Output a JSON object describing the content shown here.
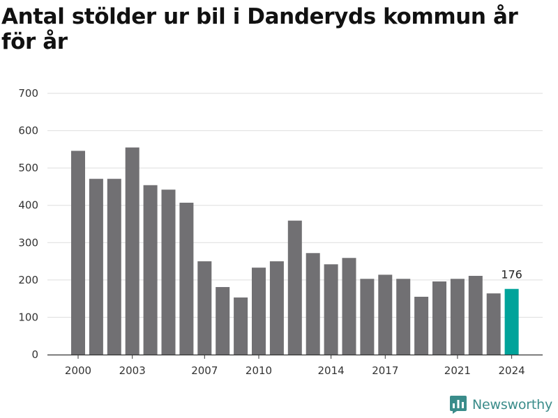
{
  "title": "Antal stölder ur bil i Danderyds kommun år för år",
  "brand": {
    "name": "Newsworthy",
    "icon": "newsworthy-logo-icon"
  },
  "colors": {
    "bar": "#717073",
    "highlight": "#00a39a",
    "grid": "#dddddd",
    "axis": "#333333"
  },
  "chart_data": {
    "type": "bar",
    "title": "Antal stölder ur bil i Danderyds kommun år för år",
    "xlabel": "",
    "ylabel": "",
    "categories": [
      2000,
      2001,
      2002,
      2003,
      2004,
      2005,
      2006,
      2007,
      2008,
      2009,
      2010,
      2011,
      2012,
      2013,
      2014,
      2015,
      2016,
      2017,
      2018,
      2019,
      2020,
      2021,
      2022,
      2023,
      2024
    ],
    "values": [
      546,
      471,
      471,
      555,
      454,
      442,
      407,
      250,
      181,
      153,
      233,
      250,
      359,
      272,
      242,
      259,
      203,
      214,
      203,
      155,
      196,
      203,
      211,
      164,
      176
    ],
    "ylim": [
      0,
      700
    ],
    "yticks": [
      0,
      100,
      200,
      300,
      400,
      500,
      600,
      700
    ],
    "xticks": [
      2000,
      2003,
      2007,
      2010,
      2014,
      2017,
      2021,
      2024
    ],
    "highlight": {
      "category": 2024,
      "label": "176"
    },
    "grid": true,
    "legend": "none"
  }
}
